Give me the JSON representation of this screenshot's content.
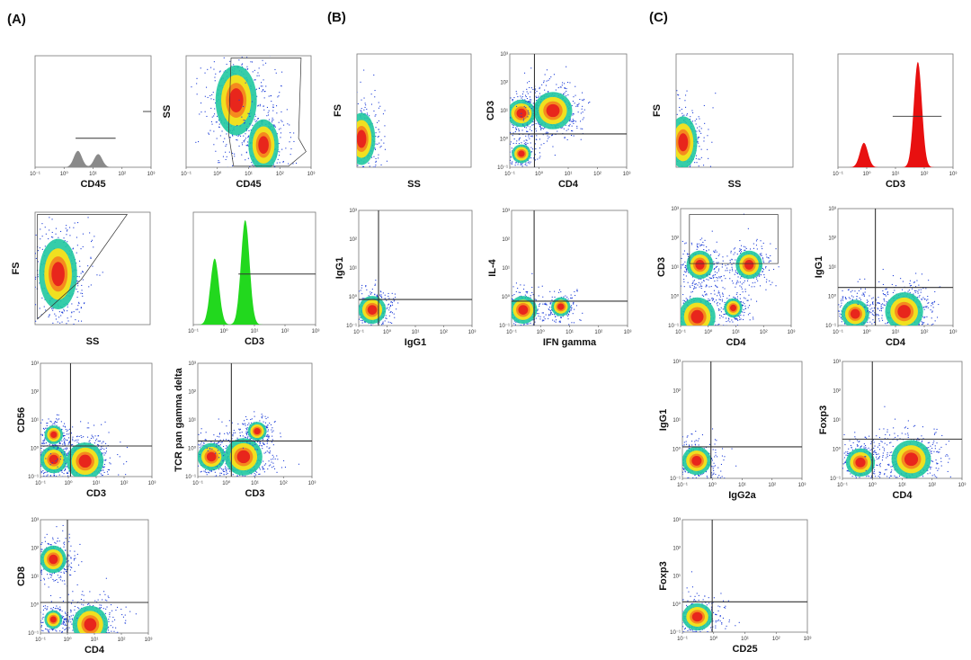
{
  "panel_labels": [
    "(A)",
    "(B)",
    "(C)"
  ],
  "tick_labels": [
    "10⁻¹",
    "10⁰",
    "10¹",
    "10²",
    "10³"
  ],
  "colors": {
    "density_low": "#1f3fd8",
    "density_mid": "#20c8a0",
    "density_high": "#f0e020",
    "density_peak": "#e8261c",
    "histogram_green": "#22d81e",
    "histogram_red": "#e81010",
    "histogram_gray": "#8a8a8a",
    "gate_line": "#333333"
  },
  "chart_data": [
    {
      "type": "histogram",
      "panel": "A",
      "xlabel": "CD45",
      "ylabel": "",
      "fill": "gray",
      "xscale": "log",
      "xlim": [
        0.1,
        1000
      ],
      "peaks": [
        {
          "x": 3,
          "height": 0.15
        },
        {
          "x": 15,
          "height": 0.12
        }
      ],
      "gate": [
        2.5,
        60
      ],
      "marker_right": true
    },
    {
      "type": "scatter",
      "panel": "A",
      "xlabel": "CD45",
      "ylabel": "SS",
      "xscale": "log",
      "xlim": [
        0.1,
        1000
      ],
      "populations": [
        {
          "x": 4,
          "y": 0.6,
          "size": "large"
        },
        {
          "x": 30,
          "y": 0.2,
          "size": "medium"
        }
      ],
      "gate": "polygon"
    },
    {
      "type": "scatter",
      "panel": "A",
      "xlabel": "SS",
      "ylabel": "FS",
      "populations": [
        {
          "x": 0.2,
          "y": 0.45,
          "size": "large"
        }
      ],
      "gate": "polygon"
    },
    {
      "type": "histogram",
      "panel": "A",
      "xlabel": "CD3",
      "ylabel": "",
      "fill": "green",
      "xscale": "log",
      "xlim": [
        0.1,
        1000
      ],
      "peaks": [
        {
          "x": 0.5,
          "height": 0.6
        },
        {
          "x": 5,
          "height": 0.95
        }
      ],
      "gate": [
        3,
        1000
      ]
    },
    {
      "type": "scatter",
      "panel": "A",
      "xlabel": "CD3",
      "ylabel": "CD56",
      "xscale": "log",
      "yscale": "log",
      "xlim": [
        0.1,
        1000
      ],
      "ylim": [
        0.1,
        1000
      ],
      "quadrant": [
        1.2,
        1.2
      ],
      "populations": [
        {
          "x": 0.3,
          "y": 0.4,
          "size": "medium"
        },
        {
          "x": 4,
          "y": 0.35,
          "size": "large"
        },
        {
          "x": 0.3,
          "y": 3,
          "size": "small"
        }
      ]
    },
    {
      "type": "scatter",
      "panel": "A",
      "xlabel": "CD3",
      "ylabel": "TCR pan gamma delta",
      "xscale": "log",
      "yscale": "log",
      "xlim": [
        0.1,
        1000
      ],
      "ylim": [
        0.1,
        1000
      ],
      "quadrant": [
        1.5,
        1.8
      ],
      "populations": [
        {
          "x": 0.3,
          "y": 0.5,
          "size": "medium"
        },
        {
          "x": 4,
          "y": 0.5,
          "size": "large"
        },
        {
          "x": 12,
          "y": 4,
          "size": "small"
        }
      ]
    },
    {
      "type": "scatter",
      "panel": "A",
      "xlabel": "CD4",
      "ylabel": "CD8",
      "xscale": "log",
      "yscale": "log",
      "xlim": [
        0.1,
        1000
      ],
      "ylim": [
        0.1,
        1000
      ],
      "quadrant": [
        1,
        1.2
      ],
      "populations": [
        {
          "x": 0.3,
          "y": 40,
          "size": "medium"
        },
        {
          "x": 7,
          "y": 0.2,
          "size": "large"
        },
        {
          "x": 0.3,
          "y": 0.3,
          "size": "small"
        }
      ]
    },
    {
      "type": "scatter",
      "panel": "B",
      "xlabel": "SS",
      "ylabel": "FS",
      "populations": [
        {
          "x": 0.04,
          "y": 0.25,
          "size": "medium"
        }
      ]
    },
    {
      "type": "scatter",
      "panel": "B",
      "xlabel": "CD4",
      "ylabel": "CD3",
      "xscale": "log",
      "yscale": "log",
      "xlim": [
        0.1,
        1000
      ],
      "ylim": [
        0.1,
        1000
      ],
      "quadrant": [
        0.7,
        1.5
      ],
      "populations": [
        {
          "x": 0.25,
          "y": 8,
          "size": "medium"
        },
        {
          "x": 3,
          "y": 10,
          "size": "large"
        },
        {
          "x": 0.25,
          "y": 0.3,
          "size": "small"
        }
      ]
    },
    {
      "type": "scatter",
      "panel": "B",
      "xlabel": "IgG1",
      "ylabel": "IgG1",
      "xscale": "log",
      "yscale": "log",
      "xlim": [
        0.1,
        1000
      ],
      "ylim": [
        0.1,
        1000
      ],
      "quadrant": [
        0.5,
        0.8
      ],
      "populations": [
        {
          "x": 0.3,
          "y": 0.35,
          "size": "medium"
        }
      ]
    },
    {
      "type": "scatter",
      "panel": "B",
      "xlabel": "IFN gamma",
      "ylabel": "IL-4",
      "xscale": "log",
      "yscale": "log",
      "xlim": [
        0.1,
        1000
      ],
      "ylim": [
        0.1,
        1000
      ],
      "quadrant": [
        0.6,
        0.7
      ],
      "populations": [
        {
          "x": 0.25,
          "y": 0.35,
          "size": "medium"
        },
        {
          "x": 5,
          "y": 0.45,
          "size": "small"
        }
      ]
    },
    {
      "type": "scatter",
      "panel": "C",
      "xlabel": "SS",
      "ylabel": "FS",
      "populations": [
        {
          "x": 0.06,
          "y": 0.22,
          "size": "medium"
        }
      ]
    },
    {
      "type": "histogram",
      "panel": "C",
      "xlabel": "CD3",
      "ylabel": "",
      "fill": "red",
      "xscale": "log",
      "xlim": [
        0.1,
        1000
      ],
      "peaks": [
        {
          "x": 0.8,
          "height": 0.22
        },
        {
          "x": 60,
          "height": 0.95
        }
      ],
      "gate": [
        8,
        400
      ]
    },
    {
      "type": "scatter",
      "panel": "C",
      "xlabel": "CD4",
      "ylabel": "CD3",
      "xscale": "log",
      "yscale": "log",
      "xlim": [
        0.1,
        1000
      ],
      "ylim": [
        0.1,
        1000
      ],
      "populations": [
        {
          "x": 0.5,
          "y": 12,
          "size": "medium"
        },
        {
          "x": 30,
          "y": 12,
          "size": "medium"
        },
        {
          "x": 0.4,
          "y": 0.2,
          "size": "large"
        },
        {
          "x": 8,
          "y": 0.4,
          "size": "small"
        }
      ],
      "gate": "rectangle"
    },
    {
      "type": "scatter",
      "panel": "C",
      "xlabel": "CD4",
      "ylabel": "IgG1",
      "xscale": "log",
      "yscale": "log",
      "xlim": [
        0.1,
        1000
      ],
      "ylim": [
        0.1,
        1000
      ],
      "quadrant": [
        2,
        2
      ],
      "populations": [
        {
          "x": 0.4,
          "y": 0.25,
          "size": "medium"
        },
        {
          "x": 20,
          "y": 0.3,
          "size": "large"
        }
      ]
    },
    {
      "type": "scatter",
      "panel": "C",
      "xlabel": "IgG2a",
      "ylabel": "IgG1",
      "xscale": "log",
      "yscale": "log",
      "xlim": [
        0.1,
        1000
      ],
      "ylim": [
        0.1,
        1000
      ],
      "quadrant": [
        0.9,
        1.2
      ],
      "populations": [
        {
          "x": 0.3,
          "y": 0.4,
          "size": "medium"
        }
      ]
    },
    {
      "type": "scatter",
      "panel": "C",
      "xlabel": "CD4",
      "ylabel": "Foxp3",
      "xscale": "log",
      "yscale": "log",
      "xlim": [
        0.1,
        1000
      ],
      "ylim": [
        0.1,
        1000
      ],
      "quadrant": [
        1,
        2.2
      ],
      "populations": [
        {
          "x": 0.4,
          "y": 0.35,
          "size": "medium"
        },
        {
          "x": 20,
          "y": 0.45,
          "size": "large"
        }
      ]
    },
    {
      "type": "scatter",
      "panel": "C",
      "xlabel": "CD25",
      "ylabel": "Foxp3",
      "xscale": "log",
      "yscale": "log",
      "xlim": [
        0.1,
        1000
      ],
      "ylim": [
        0.1,
        1000
      ],
      "quadrant": [
        0.9,
        1.2
      ],
      "populations": [
        {
          "x": 0.3,
          "y": 0.35,
          "size": "medium"
        }
      ]
    }
  ]
}
